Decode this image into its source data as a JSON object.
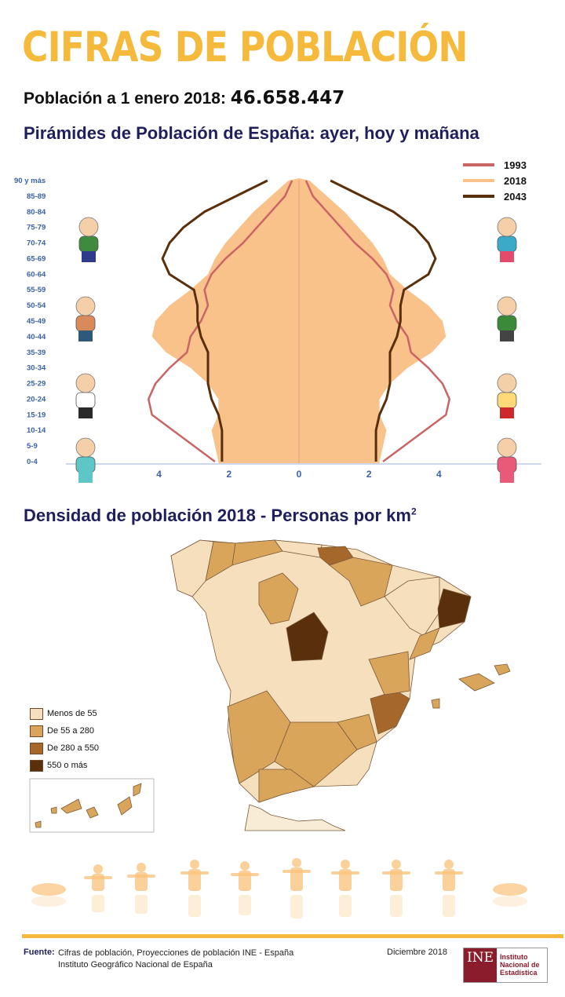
{
  "title": "CIFRAS DE POBLACIÓN",
  "population_label": "Población a 1 enero 2018:",
  "population_value": "46.658.447",
  "pyramid_title": "Pirámides de Población de España: ayer, hoy y mañana",
  "density_title": "Densidad de población 2018 - Personas por km",
  "density_title_sup": "2",
  "colors": {
    "title": "#f5b93c",
    "s1993": "#c96565",
    "s2018": "#f9c28a",
    "s2043": "#5a2f0c",
    "subtitle": "#1f1f5c",
    "axis_labels": "#3b62a6"
  },
  "chart_data": [
    {
      "type": "area",
      "title": "Pirámides de Población de España: ayer, hoy y mañana",
      "orientation": "horizontal population pyramid, left and right symmetric",
      "age_groups": [
        "0-4",
        "5-9",
        "10-14",
        "15-19",
        "20-24",
        "25-29",
        "30-34",
        "35-39",
        "40-44",
        "45-49",
        "50-54",
        "55-59",
        "60-64",
        "65-69",
        "70-74",
        "75-79",
        "80-84",
        "85-89",
        "90 y más"
      ],
      "x_ticks": [
        "6",
        "4",
        "2",
        "0",
        "2",
        "4",
        "6"
      ],
      "xlim": [
        -7,
        7
      ],
      "series": [
        {
          "name": "1993",
          "style": "line",
          "values": [
            2.4,
            3.0,
            3.6,
            4.2,
            4.3,
            4.1,
            3.7,
            3.2,
            3.1,
            2.8,
            2.6,
            2.7,
            2.5,
            2.1,
            1.6,
            1.2,
            0.8,
            0.4,
            0.2
          ]
        },
        {
          "name": "2018",
          "style": "filled area",
          "values": [
            2.3,
            2.4,
            2.5,
            2.3,
            2.3,
            2.6,
            3.1,
            3.8,
            4.2,
            4.1,
            3.7,
            3.1,
            2.6,
            2.4,
            2.1,
            1.7,
            1.3,
            0.8,
            0.3
          ]
        },
        {
          "name": "2043",
          "style": "line",
          "values": [
            2.2,
            2.2,
            2.2,
            2.3,
            2.5,
            2.6,
            2.6,
            2.6,
            2.8,
            2.9,
            2.9,
            3.0,
            3.7,
            3.9,
            3.7,
            3.3,
            2.7,
            1.8,
            0.9
          ]
        }
      ],
      "legend": [
        "1993",
        "2018",
        "2043"
      ],
      "legend_position": "top-right"
    },
    {
      "type": "choropleth",
      "title": "Densidad de población 2018 - Personas por km²",
      "unit": "Personas por km²",
      "classes": [
        {
          "label": "Menos de 55",
          "color": "#f6dfbc"
        },
        {
          "label": "De 55 a 280",
          "color": "#d9a55b"
        },
        {
          "label": "De 280 a 550",
          "color": "#a5672a"
        },
        {
          "label": "550 o más",
          "color": "#5a2f0c"
        }
      ]
    }
  ],
  "footer": {
    "source_label": "Fuente:",
    "source_line1": "Cifras de población, Proyecciones de población INE - España",
    "source_line2": "Instituto Geográfico Nacional de España",
    "date": "Diciembre 2018",
    "logo_mark": "INE",
    "institute": [
      "Instituto",
      "Nacional de",
      "Estadística"
    ]
  }
}
